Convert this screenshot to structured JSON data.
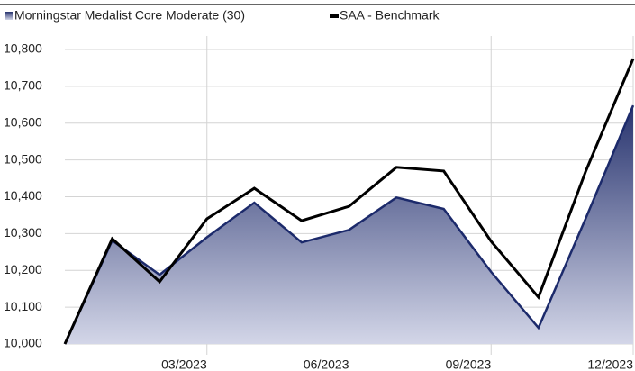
{
  "chart_data": {
    "type": "area-line",
    "categories": [
      null,
      null,
      null,
      "03/2023",
      null,
      null,
      "06/2023",
      null,
      null,
      "09/2023",
      null,
      null,
      "12/2023"
    ],
    "series": [
      {
        "name": "Morningstar Medalist Core Moderate (30)",
        "color": "#1c2a6b",
        "fill": "area",
        "values": [
          10000,
          10281,
          10188,
          10290,
          10384,
          10276,
          10310,
          10398,
          10367,
          10196,
          10044,
          10342,
          10648
        ]
      },
      {
        "name": "SAA - Benchmark",
        "color": "#000000",
        "fill": "none",
        "values": [
          10000,
          10286,
          10169,
          10340,
          10423,
          10335,
          10374,
          10480,
          10470,
          10279,
          10127,
          10470,
          10775
        ]
      }
    ],
    "ylim": [
      10000,
      10800
    ],
    "yticks": [
      {
        "value": 10000,
        "label": "10,000"
      },
      {
        "value": 10100,
        "label": "10,100"
      },
      {
        "value": 10200,
        "label": "10,200"
      },
      {
        "value": 10300,
        "label": "10,300"
      },
      {
        "value": 10400,
        "label": "10,400"
      },
      {
        "value": 10500,
        "label": "10,500"
      },
      {
        "value": 10600,
        "label": "10,600"
      },
      {
        "value": 10700,
        "label": "10,700"
      },
      {
        "value": 10800,
        "label": "10,800"
      }
    ],
    "grid": true
  }
}
